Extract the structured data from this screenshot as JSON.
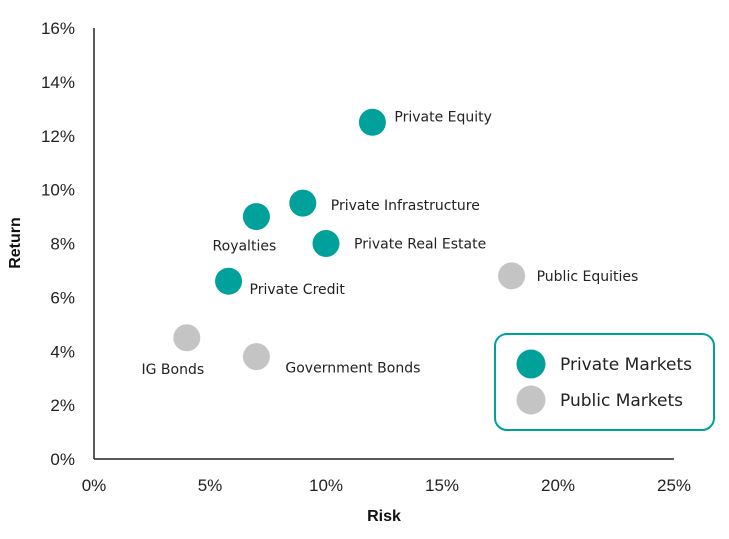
{
  "chart_data": {
    "type": "scatter",
    "xlabel": "Risk",
    "ylabel": "Return",
    "xlim": [
      0,
      25
    ],
    "ylim": [
      0,
      16
    ],
    "x_ticks": [
      "0%",
      "5%",
      "10%",
      "15%",
      "20%",
      "25%"
    ],
    "y_ticks": [
      "0%",
      "2%",
      "4%",
      "6%",
      "8%",
      "10%",
      "12%",
      "14%",
      "16%"
    ],
    "grid": false,
    "legend_position": "bottom-right",
    "colors": {
      "Private Markets": "#00A19A",
      "Public Markets": "#C4C4C4"
    },
    "series": [
      {
        "name": "Private Markets",
        "points": [
          {
            "label": "Private Equity",
            "x": 12,
            "y": 12.5
          },
          {
            "label": "Private Infrastructure",
            "x": 9,
            "y": 9.5
          },
          {
            "label": "Royalties",
            "x": 7,
            "y": 9.0
          },
          {
            "label": "Private Real Estate",
            "x": 10,
            "y": 8.0
          },
          {
            "label": "Private Credit",
            "x": 5.8,
            "y": 6.6
          }
        ]
      },
      {
        "name": "Public Markets",
        "points": [
          {
            "label": "Public Equities",
            "x": 18,
            "y": 6.8
          },
          {
            "label": "IG Bonds",
            "x": 4,
            "y": 4.5
          },
          {
            "label": "Government Bonds",
            "x": 7,
            "y": 3.8
          }
        ]
      }
    ]
  }
}
